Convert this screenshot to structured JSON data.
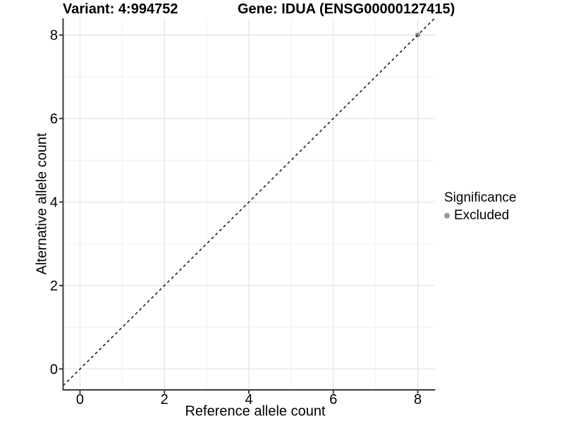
{
  "titles": {
    "left": "Variant: 4:994752",
    "right": "Gene: IDUA (ENSG00000127415)"
  },
  "chart_data": {
    "type": "scatter",
    "xlabel": "Reference allele count",
    "ylabel": "Alternative allele count",
    "xlim": [
      -0.4,
      8.4
    ],
    "ylim": [
      -0.5,
      8.4
    ],
    "xticks": [
      0,
      2,
      4,
      6,
      8
    ],
    "yticks": [
      0,
      2,
      4,
      6,
      8
    ],
    "xminor": [
      1,
      3,
      5,
      7
    ],
    "yminor": [
      1,
      3,
      5,
      7
    ],
    "grid": true,
    "identity_line": {
      "equation": "y = x",
      "style": "dashed",
      "color": "#000000"
    },
    "series": [
      {
        "name": "Excluded",
        "color": "#999999",
        "points": [
          [
            8,
            8
          ]
        ]
      }
    ],
    "legend": {
      "title": "Significance",
      "position": "right",
      "items": [
        {
          "label": "Excluded",
          "color": "#999999"
        }
      ]
    }
  },
  "colors": {
    "background": "#ffffff",
    "grid_major": "#e4e4e4",
    "grid_minor": "#f2f2f2",
    "axis_line": "#3c3c3c",
    "tick_text": "#000000",
    "excluded_point": "#999999"
  }
}
